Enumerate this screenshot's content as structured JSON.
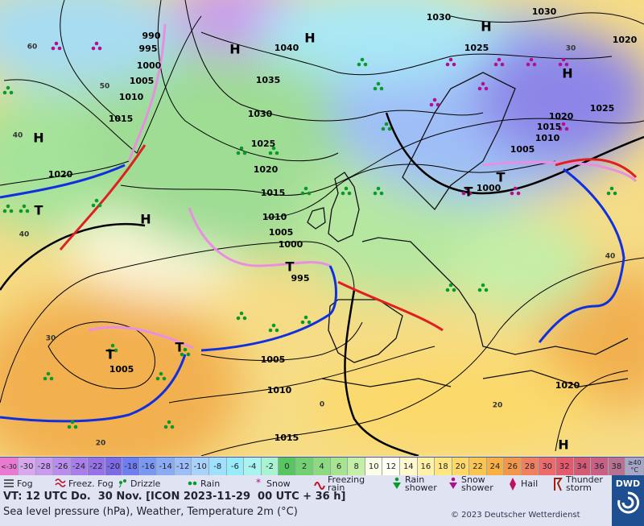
{
  "map": {
    "labels": [
      "1030",
      "1030",
      "990",
      "995",
      "1000",
      "1005",
      "1010",
      "1015",
      "1020",
      "1040",
      "1035",
      "1030",
      "1025",
      "1020",
      "1015",
      "1010",
      "1005",
      "1000",
      "995",
      "1025",
      "1020",
      "1020",
      "1025",
      "1015",
      "1010",
      "1005",
      "1000",
      "1005",
      "1005",
      "1010",
      "1015",
      "1020",
      "H",
      "H",
      "H",
      "H",
      "H",
      "H",
      "H",
      "T",
      "T",
      "T",
      "T",
      "T",
      "T",
      "60",
      "50",
      "40",
      "40",
      "30",
      "20",
      "0",
      "20",
      "30",
      "40"
    ]
  },
  "legend": {
    "temperature_scale": {
      "below": "<-30",
      "steps": [
        -30,
        -28,
        -26,
        -24,
        -22,
        -20,
        -18,
        -16,
        -14,
        -12,
        -10,
        -8,
        -6,
        -4,
        -2,
        0,
        2,
        4,
        6,
        8,
        10,
        12,
        14,
        16,
        18,
        20,
        22,
        24,
        26,
        28,
        30,
        32,
        34,
        36,
        38
      ],
      "above": "≥40 °C",
      "colors": [
        "#d9a7ec",
        "#c99bee",
        "#b98deb",
        "#a87fe8",
        "#9672e5",
        "#7f6ae6",
        "#6f7ff0",
        "#7a97f2",
        "#8cabf5",
        "#9dbef7",
        "#a9d2fb",
        "#9fe0fc",
        "#98ecfa",
        "#a9f4f1",
        "#a9f3d2",
        "#58c560",
        "#72d072",
        "#8cd97f",
        "#a7e490",
        "#c5eea7",
        "#fbfde6",
        "#fffef2",
        "#fff9cd",
        "#fff1a6",
        "#ffe680",
        "#ffd968",
        "#fbc650",
        "#f7b042",
        "#f2974a",
        "#ee8060",
        "#ea6c6b",
        "#e25b6c",
        "#d35b74",
        "#c86083",
        "#b87191"
      ],
      "below_color": "#e87ad0",
      "above_color": "#a6a6c6"
    },
    "weather": [
      "Fog",
      "Freez. Fog",
      "Drizzle",
      "Rain",
      "Snow",
      "Freezing rain",
      "Rain shower",
      "Snow shower",
      "Hail",
      "Thunder storm"
    ]
  },
  "footer": {
    "valid_time": "VT: 12 UTC Do.  30 Nov. [ICON 2023-11-29  00 UTC + 36 h]",
    "description": "Sea level pressure (hPa), Weather, Temperature 2m (°C)",
    "copyright": "© 2023 Deutscher Wetterdienst",
    "logo": "DWD"
  }
}
